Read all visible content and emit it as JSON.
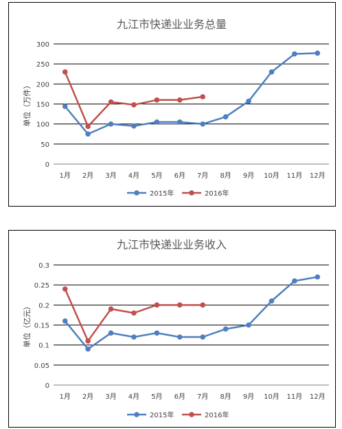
{
  "chart_data": [
    {
      "type": "line",
      "title": "九江市快递业业务总量",
      "ylabel": "单位（万件）",
      "xlabel": "",
      "categories": [
        "1月",
        "2月",
        "3月",
        "4月",
        "5月",
        "6月",
        "7月",
        "8月",
        "9月",
        "10月",
        "11月",
        "12月"
      ],
      "yticks": [
        "0",
        "50",
        "100",
        "150",
        "200",
        "250",
        "300"
      ],
      "ylim": [
        0,
        300
      ],
      "grid": true,
      "legend": "bottom",
      "series": [
        {
          "name": "2015年",
          "color": "#4f7fbf",
          "values": [
            144,
            75,
            100,
            95,
            105,
            105,
            100,
            118,
            157,
            230,
            275,
            277
          ]
        },
        {
          "name": "2016年",
          "color": "#c0504d",
          "values": [
            230,
            94,
            155,
            148,
            160,
            160,
            168,
            null,
            null,
            null,
            null,
            null
          ]
        }
      ]
    },
    {
      "type": "line",
      "title": "九江市快递业业务收入",
      "ylabel": "单位（亿元）",
      "xlabel": "",
      "categories": [
        "1月",
        "2月",
        "3月",
        "4月",
        "5月",
        "6月",
        "7月",
        "8月",
        "9月",
        "10月",
        "11月",
        "12月"
      ],
      "yticks": [
        "0",
        "0.05",
        "0.1",
        "0.15",
        "0.2",
        "0.25",
        "0.3"
      ],
      "ylim": [
        0,
        0.3
      ],
      "grid": true,
      "legend": "bottom",
      "series": [
        {
          "name": "2015年",
          "color": "#4f7fbf",
          "values": [
            0.16,
            0.09,
            0.13,
            0.12,
            0.13,
            0.12,
            0.12,
            0.14,
            0.15,
            0.21,
            0.26,
            0.27
          ]
        },
        {
          "name": "2016年",
          "color": "#c0504d",
          "values": [
            0.24,
            0.11,
            0.19,
            0.18,
            0.2,
            0.2,
            0.2,
            null,
            null,
            null,
            null,
            null
          ]
        }
      ]
    }
  ]
}
